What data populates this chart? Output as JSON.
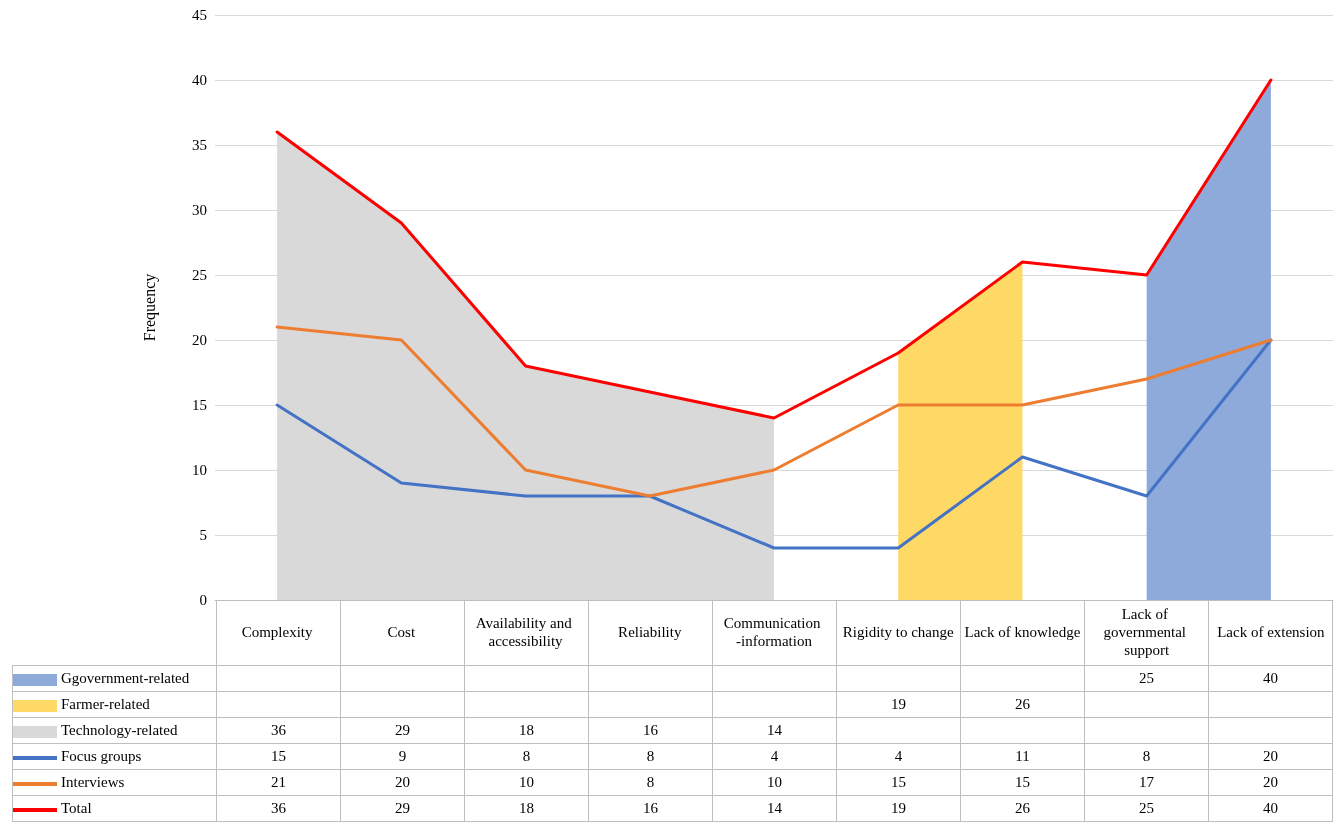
{
  "chart_data": {
    "type": "line",
    "ylabel": "Frequency",
    "categories": [
      "Complexity",
      "Cost",
      "Availability and accessibility",
      "Reliability",
      "Communication -information",
      "Rigidity to change",
      "Lack of knowledge",
      "Lack of governmental support",
      "Lack of extension"
    ],
    "series": [
      {
        "name": "Ggovernment-related",
        "type": "area",
        "color": "#8eaadb",
        "values": [
          null,
          null,
          null,
          null,
          null,
          null,
          null,
          25,
          40
        ]
      },
      {
        "name": "Farmer-related",
        "type": "area",
        "color": "#ffd966",
        "values": [
          null,
          null,
          null,
          null,
          null,
          19,
          26,
          null,
          null
        ]
      },
      {
        "name": "Technology-related",
        "type": "area",
        "color": "#d9d9d9",
        "values": [
          36,
          29,
          18,
          16,
          14,
          null,
          null,
          null,
          null
        ]
      },
      {
        "name": "Focus groups",
        "type": "line",
        "color": "#4472c4",
        "values": [
          15,
          9,
          8,
          8,
          4,
          4,
          11,
          8,
          20
        ]
      },
      {
        "name": "Interviews",
        "type": "line",
        "color": "#ed7d31",
        "values": [
          21,
          20,
          10,
          8,
          10,
          15,
          15,
          17,
          20
        ]
      },
      {
        "name": "Total",
        "type": "line",
        "color": "#ff0000",
        "values": [
          36,
          29,
          18,
          16,
          14,
          19,
          26,
          25,
          40
        ]
      }
    ],
    "ylim": [
      0,
      45
    ],
    "yticks": [
      0,
      5,
      10,
      15,
      20,
      25,
      30,
      35,
      40,
      45
    ],
    "grid": "y",
    "legend": "bottom",
    "marker": "none",
    "line_style": "solid",
    "data_labels": true
  }
}
